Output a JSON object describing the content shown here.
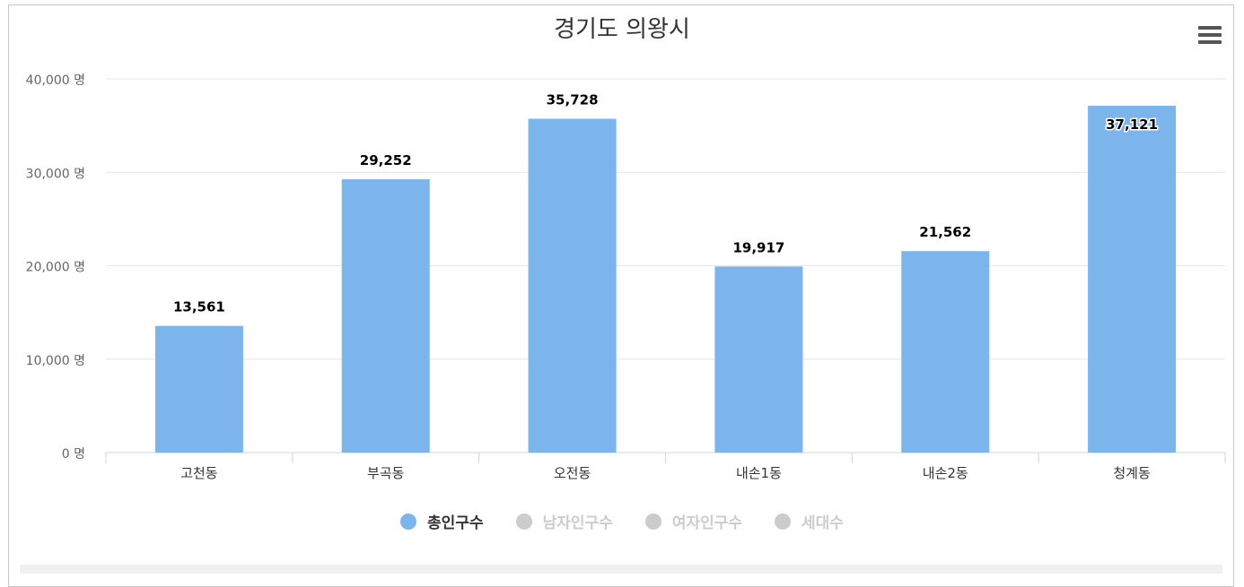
{
  "title": "경기도 의왕시",
  "menu_icon": "hamburger-menu-icon",
  "colors": {
    "bar": "#7cb5ec",
    "legend_active_text": "#333333",
    "legend_inactive_dot": "#cccccc",
    "legend_inactive_text": "#cccccc",
    "axis": "#ccd6eb",
    "grid": "#e6e6e6",
    "tick_text": "#666666"
  },
  "legend": [
    {
      "label": "총인구수",
      "active": true
    },
    {
      "label": "남자인구수",
      "active": false
    },
    {
      "label": "여자인구수",
      "active": false
    },
    {
      "label": "세대수",
      "active": false
    }
  ],
  "chart_data": {
    "type": "bar",
    "categories": [
      "고천동",
      "부곡동",
      "오전동",
      "내손1동",
      "내손2동",
      "청계동"
    ],
    "series": [
      {
        "name": "총인구수",
        "values": [
          13561,
          29252,
          35728,
          19917,
          21562,
          37121
        ]
      }
    ],
    "data_labels": [
      "13,561",
      "29,252",
      "35,728",
      "19,917",
      "21,562",
      "37,121"
    ],
    "y_ticks": [
      {
        "value": 0,
        "label": "0 명"
      },
      {
        "value": 10000,
        "label": "10,000 명"
      },
      {
        "value": 20000,
        "label": "20,000 명"
      },
      {
        "value": 30000,
        "label": "30,000 명"
      },
      {
        "value": 40000,
        "label": "40,000 명"
      }
    ],
    "ylim": [
      0,
      40000
    ],
    "grid": true,
    "legend_position": "bottom"
  }
}
